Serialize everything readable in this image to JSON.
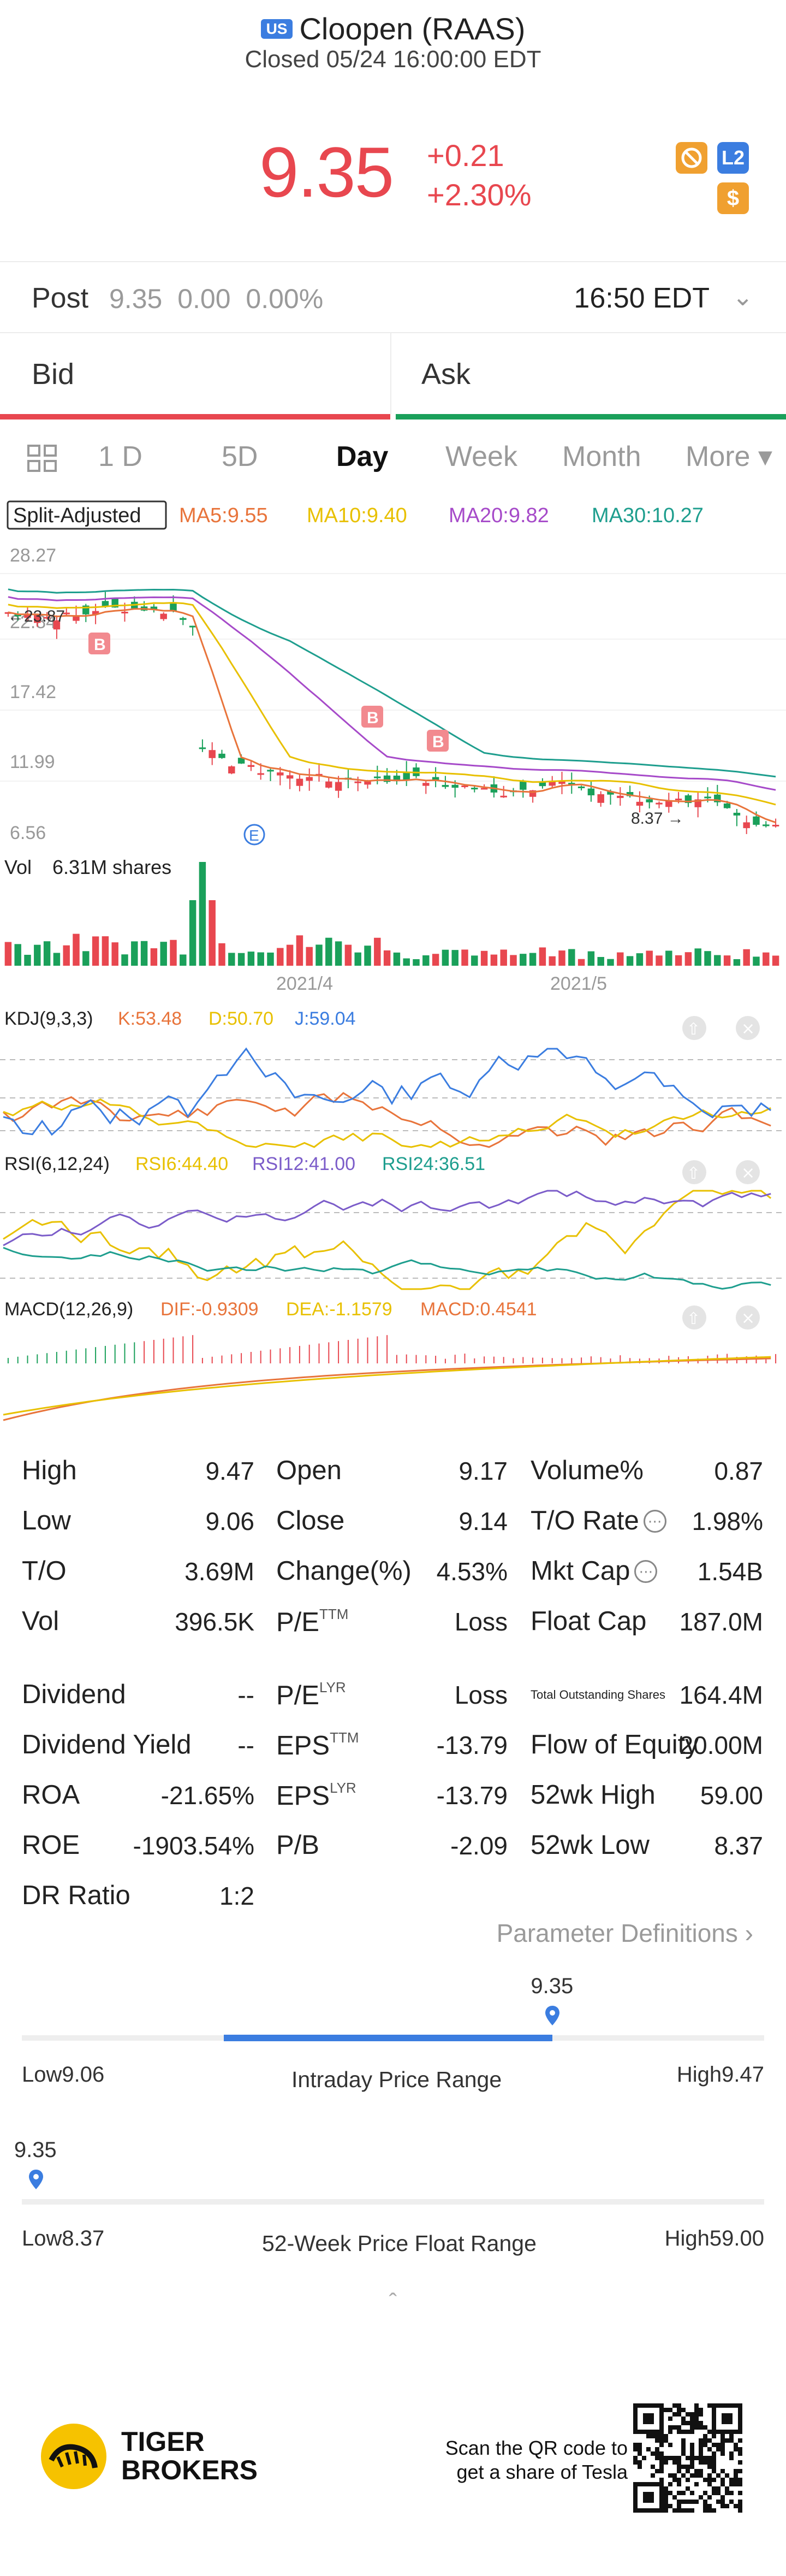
{
  "header": {
    "market_badge": "US",
    "title": "Cloopen (RAAS)",
    "status": "Closed 05/24 16:00:00 EDT"
  },
  "quote": {
    "price": "9.35",
    "change": "+0.21",
    "change_pct": "+2.30%",
    "badges": [
      {
        "icon": "no-short-icon",
        "label": "",
        "color": "#f0a030"
      },
      {
        "icon": "level2-icon",
        "label": "L2",
        "color": "#3b7de0"
      },
      {
        "icon": "dollar-icon",
        "label": "$",
        "color": "#f0a030"
      }
    ]
  },
  "post": {
    "label": "Post",
    "values": "9.35  0.00  0.00%",
    "time": "16:50 EDT"
  },
  "orderbook": {
    "bid_label": "Bid",
    "ask_label": "Ask"
  },
  "tabs": [
    "1 D",
    "5D",
    "Day",
    "Week",
    "Month",
    "More ▾"
  ],
  "active_tab": "Day",
  "chart": {
    "split_label": "Split-Adjusted",
    "ma": [
      {
        "label": "MA5:9.55",
        "color": "#e8743b"
      },
      {
        "label": "MA10:9.40",
        "color": "#e8c000"
      },
      {
        "label": "MA20:9.82",
        "color": "#a64ac9"
      },
      {
        "label": "MA30:10.27",
        "color": "#1e9e8e"
      }
    ],
    "price_axis": [
      "28.27",
      "22.84",
      "17.42",
      "11.99",
      "6.56"
    ],
    "high_marker": "23.87",
    "low_marker": "8.37",
    "vol_label": "Vol",
    "vol_value": "6.31M shares",
    "dates": [
      "2021/4",
      "2021/5"
    ],
    "kdj_title": "KDJ(9,3,3)",
    "kdj": [
      {
        "label": "K:53.48",
        "color": "#e8743b"
      },
      {
        "label": "D:50.70",
        "color": "#e8c000"
      },
      {
        "label": "J:59.04",
        "color": "#3b7de0"
      }
    ],
    "rsi_title": "RSI(6,12,24)",
    "rsi": [
      {
        "label": "RSI6:44.40",
        "color": "#e8c000"
      },
      {
        "label": "RSI12:41.00",
        "color": "#7b5cc9"
      },
      {
        "label": "RSI24:36.51",
        "color": "#1e9e8e"
      }
    ],
    "macd_title": "MACD(12,26,9)",
    "macd": [
      {
        "label": "DIF:-0.9309",
        "color": "#e8743b"
      },
      {
        "label": "DEA:-1.1579",
        "color": "#e8c000"
      },
      {
        "label": "MACD:0.4541",
        "color": "#e8743b"
      }
    ],
    "marker_b": "B",
    "marker_e": "E"
  },
  "stats": {
    "col1": [
      {
        "label": "High",
        "value": "9.47"
      },
      {
        "label": "Low",
        "value": "9.06"
      },
      {
        "label": "T/O",
        "value": "3.69M"
      },
      {
        "label": "Vol",
        "value": "396.5K"
      },
      {
        "label": "Dividend",
        "value": "--"
      },
      {
        "label": "Dividend Yield",
        "value": "--"
      },
      {
        "label": "ROA",
        "value": "-21.65%"
      },
      {
        "label": "ROE",
        "value": "-1903.54%"
      },
      {
        "label": "DR Ratio",
        "value": "1:2"
      }
    ],
    "col2": [
      {
        "label": "Open",
        "sup": "",
        "value": "9.17"
      },
      {
        "label": "Close",
        "sup": "",
        "value": "9.14"
      },
      {
        "label": "Change(%)",
        "sup": "",
        "value": "4.53%"
      },
      {
        "label": "P/E",
        "sup": "TTM",
        "value": "Loss"
      },
      {
        "label": "P/E",
        "sup": "LYR",
        "value": "Loss"
      },
      {
        "label": "EPS",
        "sup": "TTM",
        "value": "-13.79"
      },
      {
        "label": "EPS",
        "sup": "LYR",
        "value": "-13.79"
      },
      {
        "label": "P/B",
        "sup": "",
        "value": "-2.09"
      }
    ],
    "col3": [
      {
        "label": "Volume%",
        "value": "0.87"
      },
      {
        "label": "T/O Rate",
        "value": "1.98%"
      },
      {
        "label": "Mkt Cap",
        "value": "1.54B"
      },
      {
        "label": "Float Cap",
        "value": "187.0M"
      },
      {
        "label": "Total Outstanding Shares",
        "value": "164.4M"
      },
      {
        "label": "Flow of Equity",
        "value": "20.00M"
      },
      {
        "label": "52wk High",
        "value": "59.00"
      },
      {
        "label": "52wk Low",
        "value": "8.37"
      }
    ],
    "param_definitions": "Parameter Definitions"
  },
  "intraday_range": {
    "current": "9.35",
    "current_fraction": 0.715,
    "low_label": "Low",
    "low": "9.06",
    "high_label": "High",
    "high": "9.47",
    "title": "Intraday Price Range"
  },
  "week52_range": {
    "current": "9.35",
    "current_fraction": 0.019,
    "low_label": "Low",
    "low": "8.37",
    "high_label": "High",
    "high": "59.00",
    "title": "52-Week Price Float Range"
  },
  "footer": {
    "brand_line1": "TIGER",
    "brand_line2": "BROKERS",
    "qr_line1": "Scan the QR code to",
    "qr_line2": "get a share of Tesla"
  }
}
